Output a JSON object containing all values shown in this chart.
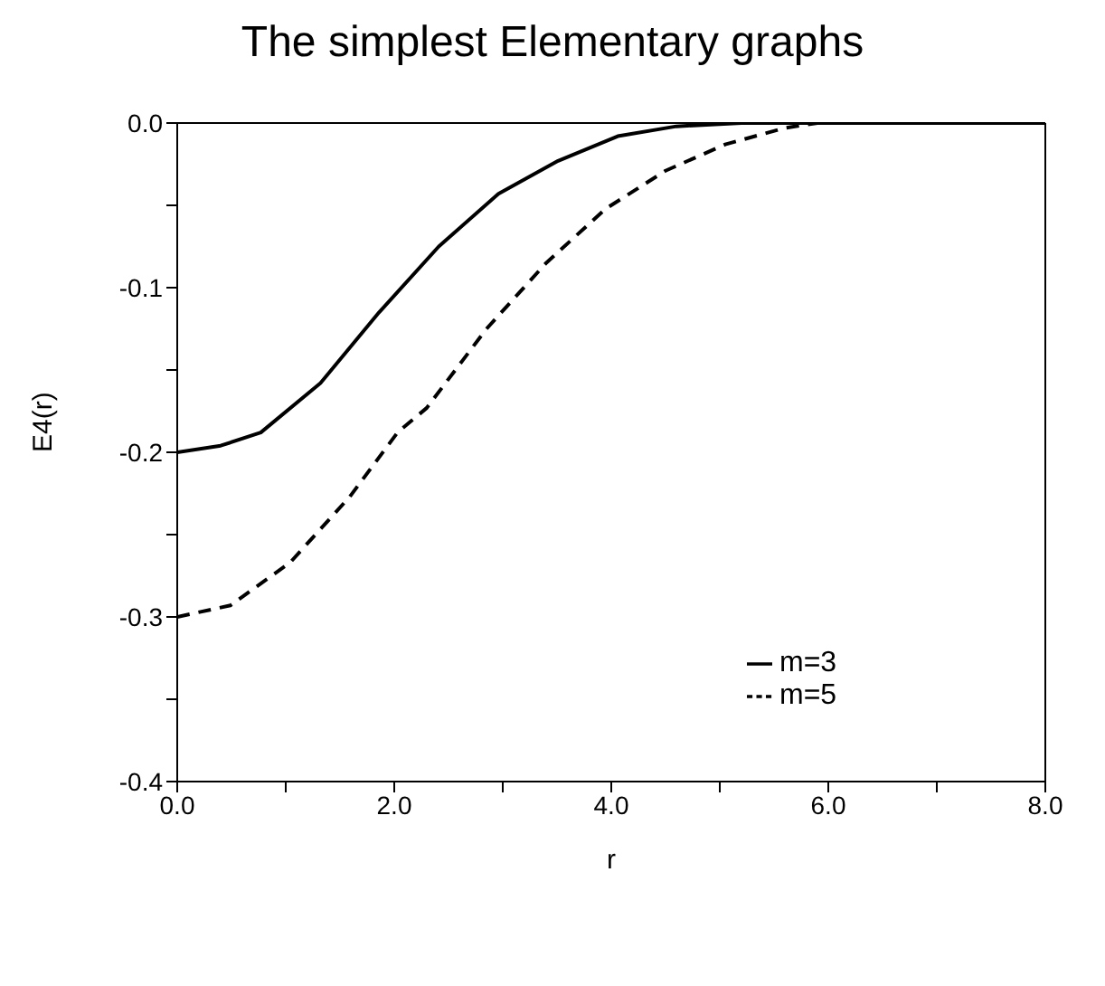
{
  "chart_data": {
    "type": "line",
    "title": "The simplest Elementary graphs",
    "xlabel": "r",
    "ylabel": "E4(r)",
    "xlim": [
      0,
      8
    ],
    "ylim": [
      -0.4,
      0
    ],
    "xticks": [
      {
        "value": 0,
        "label": "0.0"
      },
      {
        "value": 1,
        "label": null
      },
      {
        "value": 2,
        "label": "2.0"
      },
      {
        "value": 3,
        "label": null
      },
      {
        "value": 4,
        "label": "4.0"
      },
      {
        "value": 5,
        "label": null
      },
      {
        "value": 6,
        "label": "6.0"
      },
      {
        "value": 7,
        "label": null
      },
      {
        "value": 8,
        "label": "8.0"
      }
    ],
    "yticks": [
      {
        "value": -0.4,
        "label": "-0.4"
      },
      {
        "value": -0.35,
        "label": null
      },
      {
        "value": -0.3,
        "label": "-0.3"
      },
      {
        "value": -0.25,
        "label": null
      },
      {
        "value": -0.2,
        "label": "-0.2"
      },
      {
        "value": -0.15,
        "label": null
      },
      {
        "value": -0.1,
        "label": "-0.1"
      },
      {
        "value": -0.05,
        "label": null
      },
      {
        "value": 0,
        "label": "0.0"
      }
    ],
    "legend": "right",
    "grid": false,
    "marker": "none",
    "series": [
      {
        "name": "m=3",
        "color": "#000000",
        "line_style": "solid",
        "x": [
          0,
          0.4,
          0.77,
          1.32,
          1.86,
          2.41,
          2.96,
          3.51,
          4.06,
          4.6,
          5.2,
          6,
          7,
          8
        ],
        "values": [
          -0.2,
          -0.196,
          -0.188,
          -0.158,
          -0.115,
          -0.075,
          -0.043,
          -0.023,
          -0.008,
          -0.002,
          0,
          0,
          0,
          0
        ]
      },
      {
        "name": "m=5",
        "color": "#000000",
        "line_style": "dashed",
        "x": [
          0,
          0.49,
          1.04,
          1.59,
          2.03,
          2.3,
          2.85,
          3.4,
          3.95,
          4.5,
          5.05,
          5.6,
          5.9
        ],
        "values": [
          -0.3,
          -0.293,
          -0.267,
          -0.227,
          -0.188,
          -0.173,
          -0.125,
          -0.085,
          -0.052,
          -0.029,
          -0.013,
          -0.003,
          0
        ]
      }
    ]
  }
}
